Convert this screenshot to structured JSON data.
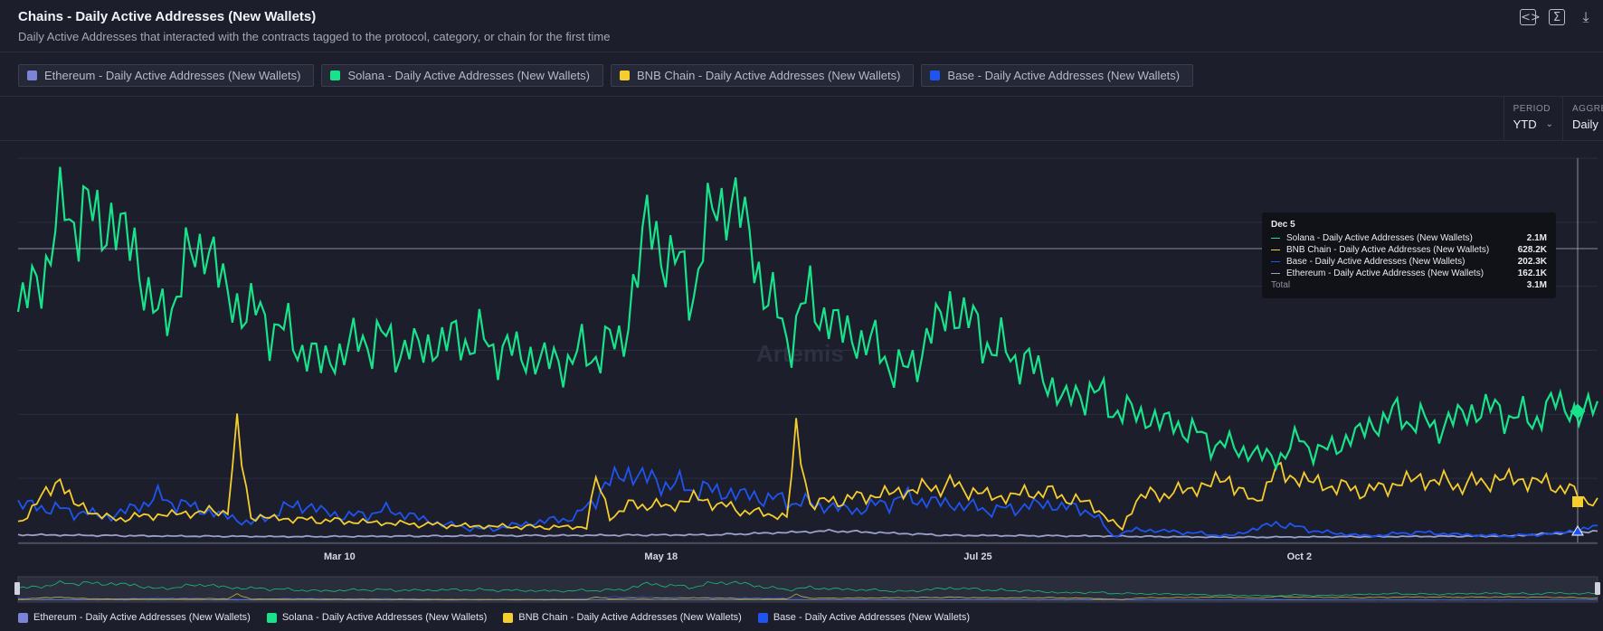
{
  "header": {
    "title": "Chains - Daily Active Addresses (New Wallets)",
    "subtitle": "Daily Active Addresses that interacted with the contracts tagged to the protocol, category, or chain for the first time",
    "icons": [
      "code-icon",
      "sigma-icon",
      "download-icon"
    ]
  },
  "chips": [
    {
      "label": "Ethereum - Daily Active Addresses (New Wallets)",
      "color": "#7b84d6"
    },
    {
      "label": "Solana - Daily Active Addresses (New Wallets)",
      "color": "#18e38a"
    },
    {
      "label": "BNB Chain - Daily Active Addresses (New Wallets)",
      "color": "#f5cd2e"
    },
    {
      "label": "Base - Daily Active Addresses (New Wallets)",
      "color": "#1f54f0"
    }
  ],
  "controls": {
    "period_label": "PERIOD",
    "period_value": "YTD",
    "aggregation_label": "AGGRE",
    "aggregation_value": "Daily"
  },
  "watermark": "Artemis",
  "tooltip": {
    "date": "Dec 5",
    "rows": [
      {
        "name": "Solana - Daily Active Addresses (New Wallets)",
        "value": "2.1M",
        "color": "#18e38a"
      },
      {
        "name": "BNB Chain - Daily Active Addresses (New Wallets)",
        "value": "628.2K",
        "color": "#f5cd2e"
      },
      {
        "name": "Base - Daily Active Addresses (New Wallets)",
        "value": "202.3K",
        "color": "#1f54f0"
      },
      {
        "name": "Ethereum - Daily Active Addresses (New Wallets)",
        "value": "162.1K",
        "color": "#9aa0c8"
      }
    ],
    "total_label": "Total",
    "total_value": "3.1M"
  },
  "chart_data": {
    "type": "line",
    "x_ticks": [
      "Mar 10",
      "May 18",
      "Jul 25",
      "Oct 2"
    ],
    "x_start": "Jan 1",
    "x_end": "Dec 8",
    "ylim": [
      0,
      3000000
    ],
    "grid": true,
    "series": [
      {
        "name": "Solana - Daily Active Addresses (New Wallets)",
        "color": "#18e38a",
        "keyframes": [
          [
            0,
            1800000
          ],
          [
            5,
            2100000
          ],
          [
            10,
            2600000
          ],
          [
            20,
            2500000
          ],
          [
            25,
            2300000
          ],
          [
            30,
            1700000
          ],
          [
            40,
            2400000
          ],
          [
            45,
            1900000
          ],
          [
            55,
            1700000
          ],
          [
            65,
            1400000
          ],
          [
            75,
            1600000
          ],
          [
            85,
            1500000
          ],
          [
            95,
            1600000
          ],
          [
            105,
            1500000
          ],
          [
            115,
            1400000
          ],
          [
            125,
            1500000
          ],
          [
            130,
            1600000
          ],
          [
            135,
            2500000
          ],
          [
            140,
            2200000
          ],
          [
            145,
            2000000
          ],
          [
            150,
            2700000
          ],
          [
            155,
            2600000
          ],
          [
            160,
            2000000
          ],
          [
            165,
            1600000
          ],
          [
            170,
            1900000
          ],
          [
            175,
            1700000
          ],
          [
            180,
            1600000
          ],
          [
            185,
            1500000
          ],
          [
            190,
            1300000
          ],
          [
            200,
            1850000
          ],
          [
            205,
            1700000
          ],
          [
            210,
            1500000
          ],
          [
            215,
            1450000
          ],
          [
            220,
            1300000
          ],
          [
            225,
            1100000
          ],
          [
            230,
            1200000
          ],
          [
            235,
            1050000
          ],
          [
            240,
            1000000
          ],
          [
            245,
            950000
          ],
          [
            250,
            900000
          ],
          [
            255,
            800000
          ],
          [
            260,
            750000
          ],
          [
            265,
            700000
          ],
          [
            270,
            650000
          ],
          [
            275,
            800000
          ],
          [
            280,
            700000
          ],
          [
            285,
            800000
          ],
          [
            290,
            900000
          ],
          [
            295,
            1000000
          ],
          [
            300,
            950000
          ],
          [
            305,
            900000
          ],
          [
            310,
            1000000
          ],
          [
            315,
            1050000
          ],
          [
            320,
            1000000
          ],
          [
            325,
            950000
          ],
          [
            330,
            1100000
          ],
          [
            335,
            1000000
          ],
          [
            339,
            1050000
          ]
        ],
        "values_note_tooltip_last": 2100000
      },
      {
        "name": "BNB Chain - Daily Active Addresses (New Wallets)",
        "color": "#f5cd2e",
        "keyframes": [
          [
            0,
            150000
          ],
          [
            9,
            500000
          ],
          [
            12,
            300000
          ],
          [
            20,
            180000
          ],
          [
            25,
            200000
          ],
          [
            45,
            250000
          ],
          [
            47,
            850000
          ],
          [
            50,
            200000
          ],
          [
            60,
            180000
          ],
          [
            80,
            150000
          ],
          [
            95,
            130000
          ],
          [
            110,
            120000
          ],
          [
            122,
            120000
          ],
          [
            124,
            500000
          ],
          [
            127,
            200000
          ],
          [
            132,
            300000
          ],
          [
            140,
            280000
          ],
          [
            145,
            350000
          ],
          [
            155,
            250000
          ],
          [
            165,
            200000
          ],
          [
            167,
            850000
          ],
          [
            170,
            300000
          ],
          [
            180,
            350000
          ],
          [
            190,
            400000
          ],
          [
            200,
            450000
          ],
          [
            210,
            350000
          ],
          [
            220,
            400000
          ],
          [
            230,
            300000
          ],
          [
            237,
            100000
          ],
          [
            240,
            350000
          ],
          [
            250,
            400000
          ],
          [
            260,
            500000
          ],
          [
            265,
            300000
          ],
          [
            270,
            550000
          ],
          [
            280,
            450000
          ],
          [
            290,
            400000
          ],
          [
            300,
            500000
          ],
          [
            310,
            450000
          ],
          [
            320,
            500000
          ],
          [
            330,
            450000
          ],
          [
            339,
            300000
          ]
        ]
      },
      {
        "name": "Base - Daily Active Addresses (New Wallets)",
        "color": "#1f54f0",
        "keyframes": [
          [
            0,
            300000
          ],
          [
            10,
            250000
          ],
          [
            20,
            200000
          ],
          [
            30,
            350000
          ],
          [
            40,
            250000
          ],
          [
            50,
            150000
          ],
          [
            60,
            300000
          ],
          [
            70,
            200000
          ],
          [
            80,
            250000
          ],
          [
            90,
            150000
          ],
          [
            100,
            100000
          ],
          [
            110,
            150000
          ],
          [
            120,
            200000
          ],
          [
            125,
            400000
          ],
          [
            130,
            550000
          ],
          [
            140,
            450000
          ],
          [
            150,
            400000
          ],
          [
            160,
            350000
          ],
          [
            170,
            300000
          ],
          [
            180,
            250000
          ],
          [
            190,
            350000
          ],
          [
            200,
            300000
          ],
          [
            210,
            250000
          ],
          [
            220,
            300000
          ],
          [
            230,
            250000
          ],
          [
            235,
            50000
          ],
          [
            240,
            100000
          ],
          [
            250,
            80000
          ],
          [
            260,
            50000
          ],
          [
            270,
            150000
          ],
          [
            280,
            80000
          ],
          [
            290,
            50000
          ],
          [
            300,
            80000
          ],
          [
            310,
            60000
          ],
          [
            320,
            50000
          ],
          [
            330,
            70000
          ],
          [
            339,
            120000
          ]
        ]
      },
      {
        "name": "Ethereum - Daily Active Addresses (New Wallets)",
        "color": "#9aa0c8",
        "keyframes": [
          [
            0,
            60000
          ],
          [
            30,
            50000
          ],
          [
            60,
            45000
          ],
          [
            90,
            50000
          ],
          [
            120,
            55000
          ],
          [
            150,
            60000
          ],
          [
            175,
            90000
          ],
          [
            200,
            55000
          ],
          [
            230,
            50000
          ],
          [
            260,
            40000
          ],
          [
            290,
            45000
          ],
          [
            320,
            50000
          ],
          [
            339,
            90000
          ]
        ]
      }
    ]
  },
  "legend_bottom": [
    {
      "label": "Ethereum - Daily Active Addresses (New Wallets)",
      "color": "#7b84d6"
    },
    {
      "label": "Solana - Daily Active Addresses (New Wallets)",
      "color": "#18e38a"
    },
    {
      "label": "BNB Chain - Daily Active Addresses (New Wallets)",
      "color": "#f5cd2e"
    },
    {
      "label": "Base - Daily Active Addresses (New Wallets)",
      "color": "#1f54f0"
    }
  ]
}
